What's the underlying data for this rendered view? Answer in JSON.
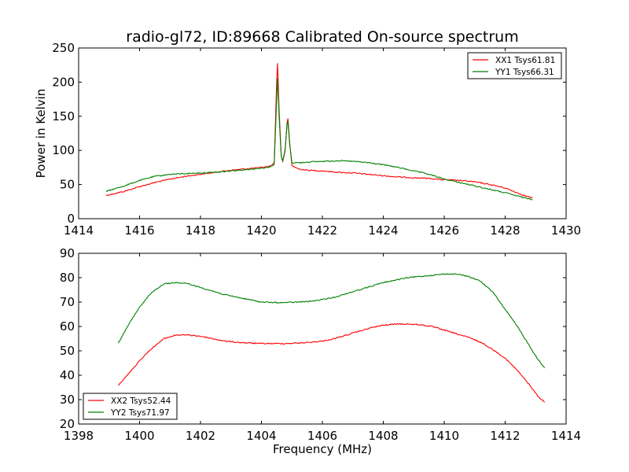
{
  "figure_title": "radio-gl72, ID:89668 Calibrated On-source spectrum",
  "colors": {
    "red": "#ff0000",
    "green": "#008000",
    "axes": "#000000",
    "background": "#ffffff"
  },
  "chart_data": [
    {
      "type": "line",
      "title": "radio-gl72, ID:89668 Calibrated On-source spectrum",
      "xlabel": "",
      "ylabel": "Power in Kelvin",
      "xlim": [
        1414,
        1430
      ],
      "ylim": [
        0,
        250
      ],
      "xticks": [
        1414,
        1416,
        1418,
        1420,
        1422,
        1424,
        1426,
        1428,
        1430
      ],
      "yticks": [
        0,
        50,
        100,
        150,
        200,
        250
      ],
      "grid": false,
      "legend_position": "top-right",
      "series": [
        {
          "name": "XX1 Tsys61.81",
          "color": "#ff0000",
          "points": [
            [
              1414.9,
              34
            ],
            [
              1415.5,
              40
            ],
            [
              1416.0,
              47
            ],
            [
              1416.5,
              53
            ],
            [
              1417.0,
              58
            ],
            [
              1417.5,
              62
            ],
            [
              1418.0,
              65
            ],
            [
              1418.5,
              68
            ],
            [
              1419.0,
              71
            ],
            [
              1419.5,
              73
            ],
            [
              1420.0,
              75
            ],
            [
              1420.3,
              77
            ],
            [
              1420.42,
              82
            ],
            [
              1420.5,
              200
            ],
            [
              1420.53,
              228
            ],
            [
              1420.58,
              160
            ],
            [
              1420.65,
              92
            ],
            [
              1420.7,
              84
            ],
            [
              1420.78,
              100
            ],
            [
              1420.84,
              140
            ],
            [
              1420.87,
              146
            ],
            [
              1420.93,
              110
            ],
            [
              1421.0,
              78
            ],
            [
              1421.2,
              73
            ],
            [
              1421.5,
              71
            ],
            [
              1422.0,
              70
            ],
            [
              1422.5,
              68
            ],
            [
              1423.0,
              67
            ],
            [
              1423.5,
              65
            ],
            [
              1424.0,
              63
            ],
            [
              1424.5,
              61
            ],
            [
              1425.0,
              60
            ],
            [
              1425.5,
              59
            ],
            [
              1426.0,
              57
            ],
            [
              1426.5,
              56
            ],
            [
              1427.0,
              54
            ],
            [
              1427.5,
              50
            ],
            [
              1428.0,
              45
            ],
            [
              1428.5,
              36
            ],
            [
              1428.9,
              30
            ]
          ]
        },
        {
          "name": "YY1 Tsys66.31",
          "color": "#008000",
          "points": [
            [
              1414.9,
              40
            ],
            [
              1415.5,
              48
            ],
            [
              1416.0,
              56
            ],
            [
              1416.5,
              62
            ],
            [
              1417.0,
              65
            ],
            [
              1417.5,
              66
            ],
            [
              1418.0,
              67
            ],
            [
              1418.5,
              68
            ],
            [
              1419.0,
              70
            ],
            [
              1419.5,
              72
            ],
            [
              1420.0,
              74
            ],
            [
              1420.3,
              76
            ],
            [
              1420.42,
              80
            ],
            [
              1420.5,
              175
            ],
            [
              1420.53,
              205
            ],
            [
              1420.58,
              150
            ],
            [
              1420.65,
              92
            ],
            [
              1420.7,
              84
            ],
            [
              1420.78,
              102
            ],
            [
              1420.84,
              138
            ],
            [
              1420.87,
              142
            ],
            [
              1420.93,
              108
            ],
            [
              1421.0,
              82
            ],
            [
              1421.3,
              82
            ],
            [
              1421.5,
              83
            ],
            [
              1422.0,
              84
            ],
            [
              1422.5,
              85
            ],
            [
              1423.0,
              84
            ],
            [
              1423.5,
              82
            ],
            [
              1424.0,
              79
            ],
            [
              1424.5,
              75
            ],
            [
              1425.0,
              70
            ],
            [
              1425.5,
              65
            ],
            [
              1426.0,
              58
            ],
            [
              1426.5,
              53
            ],
            [
              1427.0,
              48
            ],
            [
              1427.5,
              43
            ],
            [
              1428.0,
              38
            ],
            [
              1428.5,
              32
            ],
            [
              1428.9,
              28
            ]
          ]
        }
      ]
    },
    {
      "type": "line",
      "title": "",
      "xlabel": "Frequency (MHz)",
      "ylabel": "",
      "xlim": [
        1398,
        1414
      ],
      "ylim": [
        20,
        90
      ],
      "xticks": [
        1398,
        1400,
        1402,
        1404,
        1406,
        1408,
        1410,
        1412,
        1414
      ],
      "yticks": [
        20,
        30,
        40,
        50,
        60,
        70,
        80,
        90
      ],
      "grid": false,
      "legend_position": "bottom-left",
      "series": [
        {
          "name": "XX2 Tsys52.44",
          "color": "#ff0000",
          "points": [
            [
              1399.3,
              36
            ],
            [
              1399.6,
              40
            ],
            [
              1400.0,
              46
            ],
            [
              1400.4,
              51
            ],
            [
              1400.8,
              55
            ],
            [
              1401.2,
              56.5
            ],
            [
              1401.6,
              56.5
            ],
            [
              1402.0,
              56
            ],
            [
              1402.4,
              55
            ],
            [
              1402.8,
              54
            ],
            [
              1403.2,
              53.5
            ],
            [
              1403.6,
              53.2
            ],
            [
              1404.0,
              53
            ],
            [
              1404.4,
              53
            ],
            [
              1404.8,
              53
            ],
            [
              1405.2,
              53.2
            ],
            [
              1405.6,
              53.5
            ],
            [
              1406.0,
              54
            ],
            [
              1406.4,
              55
            ],
            [
              1406.8,
              56.5
            ],
            [
              1407.2,
              58
            ],
            [
              1407.6,
              59.5
            ],
            [
              1408.0,
              60.5
            ],
            [
              1408.4,
              61
            ],
            [
              1408.8,
              61
            ],
            [
              1409.2,
              60.7
            ],
            [
              1409.6,
              60
            ],
            [
              1410.0,
              58.5
            ],
            [
              1410.4,
              57
            ],
            [
              1410.8,
              55.5
            ],
            [
              1411.2,
              53.5
            ],
            [
              1411.6,
              50.5
            ],
            [
              1412.0,
              47
            ],
            [
              1412.4,
              42
            ],
            [
              1412.8,
              36
            ],
            [
              1413.1,
              31
            ],
            [
              1413.3,
              29
            ]
          ]
        },
        {
          "name": "YY2 Tsys71.97",
          "color": "#008000",
          "points": [
            [
              1399.3,
              53
            ],
            [
              1399.6,
              60
            ],
            [
              1400.0,
              68
            ],
            [
              1400.4,
              74
            ],
            [
              1400.8,
              77.5
            ],
            [
              1401.2,
              78
            ],
            [
              1401.6,
              77.5
            ],
            [
              1402.0,
              76
            ],
            [
              1402.4,
              74.5
            ],
            [
              1402.8,
              73
            ],
            [
              1403.2,
              72
            ],
            [
              1403.6,
              71
            ],
            [
              1404.0,
              70
            ],
            [
              1404.4,
              69.8
            ],
            [
              1404.8,
              69.8
            ],
            [
              1405.2,
              70
            ],
            [
              1405.6,
              70.3
            ],
            [
              1406.0,
              71
            ],
            [
              1406.4,
              72
            ],
            [
              1406.8,
              73.5
            ],
            [
              1407.2,
              75
            ],
            [
              1407.6,
              76.5
            ],
            [
              1408.0,
              78
            ],
            [
              1408.4,
              79
            ],
            [
              1408.8,
              80
            ],
            [
              1409.2,
              80.5
            ],
            [
              1409.6,
              81
            ],
            [
              1410.0,
              81.5
            ],
            [
              1410.4,
              81.5
            ],
            [
              1410.8,
              80.5
            ],
            [
              1411.2,
              78.5
            ],
            [
              1411.6,
              74
            ],
            [
              1412.0,
              67
            ],
            [
              1412.4,
              60
            ],
            [
              1412.8,
              52
            ],
            [
              1413.1,
              46
            ],
            [
              1413.3,
              43
            ]
          ]
        }
      ]
    }
  ]
}
